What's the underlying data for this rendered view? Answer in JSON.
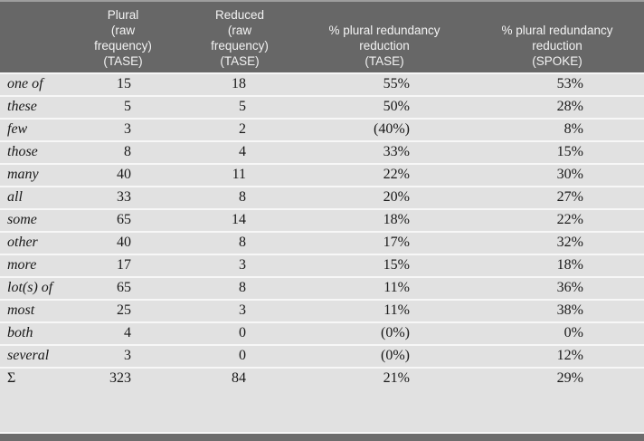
{
  "table": {
    "columns": [
      {
        "label": ""
      },
      {
        "label": "Plural\n(raw\nfrequency)\n(TASE)"
      },
      {
        "label": "Reduced\n(raw\nfrequency)\n(TASE)"
      },
      {
        "label": "% plural redundancy\nreduction\n(TASE)"
      },
      {
        "label": "% plural redundancy\nreduction\n(SPOKE)"
      }
    ],
    "rows": [
      {
        "label": "one of",
        "plural": "15",
        "reduced": "18",
        "tase_pct": "55%",
        "spoke_pct": "53%"
      },
      {
        "label": "these",
        "plural": "5",
        "reduced": "5",
        "tase_pct": "50%",
        "spoke_pct": "28%"
      },
      {
        "label": "few",
        "plural": "3",
        "reduced": "2",
        "tase_pct": "(40%)",
        "spoke_pct": "8%"
      },
      {
        "label": "those",
        "plural": "8",
        "reduced": "4",
        "tase_pct": "33%",
        "spoke_pct": "15%"
      },
      {
        "label": "many",
        "plural": "40",
        "reduced": "11",
        "tase_pct": "22%",
        "spoke_pct": "30%"
      },
      {
        "label": "all",
        "plural": "33",
        "reduced": "8",
        "tase_pct": "20%",
        "spoke_pct": "27%"
      },
      {
        "label": "some",
        "plural": "65",
        "reduced": "14",
        "tase_pct": "18%",
        "spoke_pct": "22%"
      },
      {
        "label": "other",
        "plural": "40",
        "reduced": "8",
        "tase_pct": "17%",
        "spoke_pct": "32%"
      },
      {
        "label": "more",
        "plural": "17",
        "reduced": "3",
        "tase_pct": "15%",
        "spoke_pct": "18%"
      },
      {
        "label": "lot(s) of",
        "plural": "65",
        "reduced": "8",
        "tase_pct": "11%",
        "spoke_pct": "36%"
      },
      {
        "label": "most",
        "plural": "25",
        "reduced": "3",
        "tase_pct": "11%",
        "spoke_pct": "38%"
      },
      {
        "label": "both",
        "plural": "4",
        "reduced": "0",
        "tase_pct": "(0%)",
        "spoke_pct": "0%"
      },
      {
        "label": "several",
        "plural": "3",
        "reduced": "0",
        "tase_pct": "(0%)",
        "spoke_pct": "12%"
      }
    ],
    "total_row": {
      "label": "Σ",
      "plural": "323",
      "reduced": "84",
      "tase_pct": "21%",
      "spoke_pct": "29%"
    }
  },
  "colors": {
    "header_bg": "#676767",
    "row_bg": "#e1e1e1",
    "separator": "#f7f7f7",
    "footer_bg": "#6c6c6c",
    "top_line": "#9e9e9e",
    "header_text": "#f3f3f3",
    "body_text": "#191919"
  }
}
